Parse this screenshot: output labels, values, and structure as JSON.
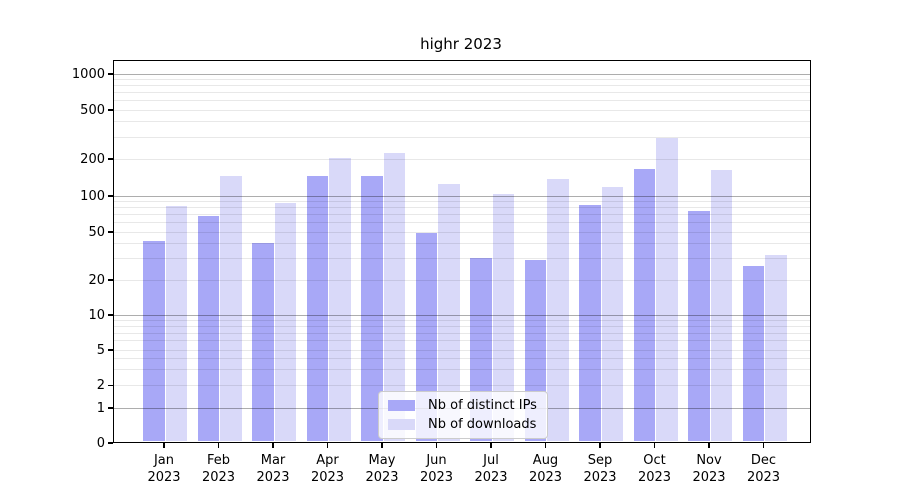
{
  "title": "highr 2023",
  "chart_data": {
    "type": "bar",
    "title": "highr 2023",
    "categories": [
      {
        "month": "Jan",
        "year": "2023"
      },
      {
        "month": "Feb",
        "year": "2023"
      },
      {
        "month": "Mar",
        "year": "2023"
      },
      {
        "month": "Apr",
        "year": "2023"
      },
      {
        "month": "May",
        "year": "2023"
      },
      {
        "month": "Jun",
        "year": "2023"
      },
      {
        "month": "Jul",
        "year": "2023"
      },
      {
        "month": "Aug",
        "year": "2023"
      },
      {
        "month": "Sep",
        "year": "2023"
      },
      {
        "month": "Oct",
        "year": "2023"
      },
      {
        "month": "Nov",
        "year": "2023"
      },
      {
        "month": "Dec",
        "year": "2023"
      }
    ],
    "series": [
      {
        "name": "Nb of distinct IPs",
        "color": "#a8a8f7",
        "values": [
          42,
          68,
          40,
          145,
          145,
          49,
          30,
          29,
          84,
          165,
          74,
          26
        ]
      },
      {
        "name": "Nb of downloads",
        "color": "#d9d9f9",
        "values": [
          82,
          145,
          87,
          203,
          220,
          123,
          103,
          135,
          117,
          295,
          162,
          32
        ]
      }
    ],
    "y_axis": {
      "scale": "symlog",
      "tick_labels": [
        "0",
        "1",
        "2",
        "5",
        "10",
        "20",
        "50",
        "100",
        "200",
        "500",
        "1000"
      ],
      "tick_values": [
        0,
        1,
        2,
        5,
        10,
        20,
        50,
        100,
        200,
        500,
        1000
      ],
      "major_gridline_values": [
        1,
        10,
        100,
        1000
      ],
      "minor_gridline_values": [
        2,
        3,
        4,
        5,
        6,
        7,
        8,
        9,
        20,
        30,
        40,
        50,
        60,
        70,
        80,
        90,
        200,
        300,
        400,
        500,
        600,
        700,
        800,
        900
      ]
    },
    "xlabel": "",
    "ylabel": "",
    "grid": "on",
    "legend_position": "bottom-center"
  },
  "colors": {
    "background": "#ffffff",
    "spine": "#000000",
    "text": "#000000",
    "major_grid": "rgba(0,0,0,0.32)",
    "minor_grid": "rgba(0,0,0,0.09)",
    "legend_border": "#cccccc",
    "legend_bg": "rgba(255,255,255,0.8)"
  }
}
